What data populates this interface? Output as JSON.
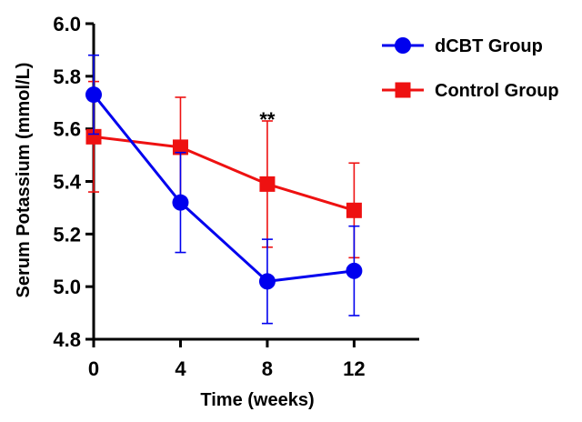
{
  "chart_data": {
    "type": "line",
    "xlabel": "Time (weeks)",
    "ylabel": "Serum Potassium (mmol/L)",
    "xlim": [
      0,
      15
    ],
    "ylim": [
      4.8,
      6.0
    ],
    "xticks": [
      0,
      4,
      8,
      12
    ],
    "xtick_labels": [
      "0",
      "4",
      "8",
      "12"
    ],
    "yticks": [
      4.8,
      5.0,
      5.2,
      5.4,
      5.6,
      5.8,
      6.0
    ],
    "ytick_labels": [
      "4.8",
      "5.0",
      "5.2",
      "5.4",
      "5.6",
      "5.8",
      "6.0"
    ],
    "x": [
      0,
      4,
      8,
      12
    ],
    "series": [
      {
        "name": "dCBT Group",
        "color": "#0000ee",
        "marker": "circle",
        "values": [
          5.73,
          5.32,
          5.02,
          5.06
        ],
        "error": [
          0.15,
          0.19,
          0.16,
          0.17
        ]
      },
      {
        "name": "Control Group",
        "color": "#ee1111",
        "marker": "square",
        "values": [
          5.57,
          5.53,
          5.39,
          5.29
        ],
        "error": [
          0.21,
          0.19,
          0.24,
          0.18
        ]
      }
    ],
    "annotations": [
      {
        "text": "**",
        "x": 8,
        "y": 5.63
      }
    ],
    "legend_position": "top-right",
    "grid": false
  }
}
